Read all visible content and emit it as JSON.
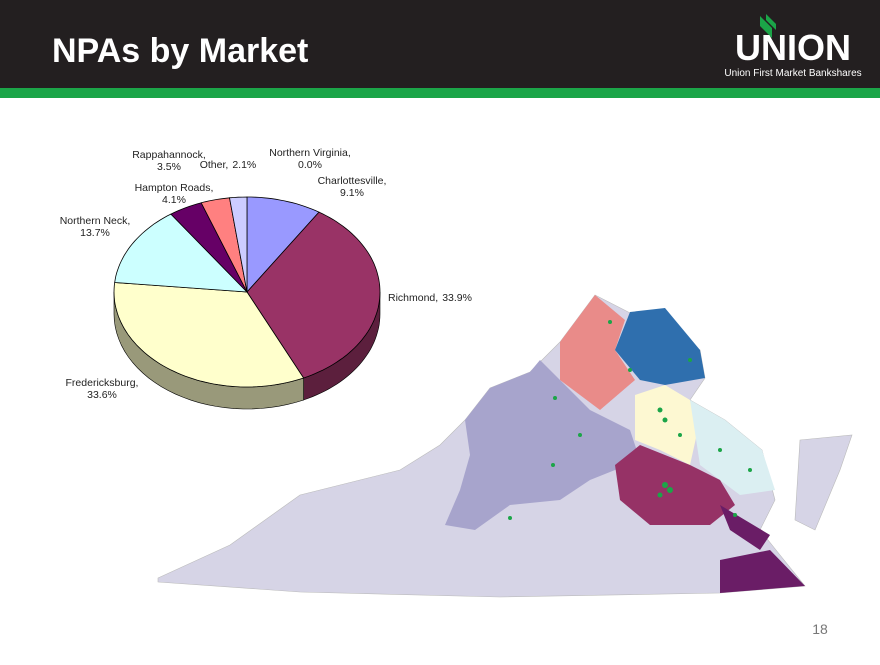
{
  "header": {
    "title": "NPAs by Market"
  },
  "logo": {
    "name": "UNION",
    "tagline": "Union First Market Bankshares"
  },
  "page_number": "18",
  "chart_data": {
    "type": "pie",
    "categories": [
      "Northern Virginia,",
      "Charlottesville,",
      "Richmond,",
      "Fredericksburg,",
      "Northern Neck,",
      "Hampton Roads,",
      "Rappahannock,",
      "Other,"
    ],
    "values": [
      0.0,
      9.1,
      33.9,
      33.6,
      13.7,
      4.1,
      3.5,
      2.1
    ],
    "value_labels": [
      "0.0%",
      "9.1%",
      "33.9%",
      "33.6%",
      "13.7%",
      "4.1%",
      "3.5%",
      "2.1%"
    ],
    "colors": [
      "#000080",
      "#9999ff",
      "#993366",
      "#ffffcc",
      "#ccffff",
      "#660066",
      "#ff8080",
      "#ccccff"
    ]
  }
}
